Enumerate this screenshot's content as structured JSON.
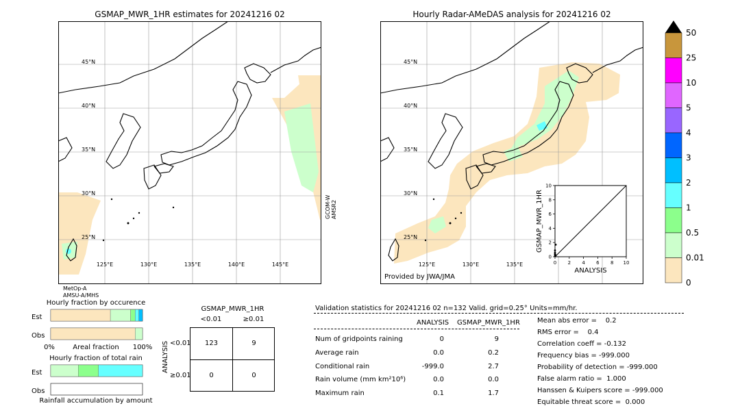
{
  "left_map": {
    "title": "GSMAP_MWR_1HR estimates for 20241216 02",
    "lat_labels": [
      "45°N",
      "40°N",
      "35°N",
      "30°N",
      "25°N"
    ],
    "lon_labels": [
      "125°E",
      "130°E",
      "135°E",
      "140°E",
      "145°E"
    ],
    "swath_label_right": "GCOM-W\nAMSR2",
    "swath_label_bottom": "MetOp-A\nAMSU-A/MHS"
  },
  "right_map": {
    "title": "Hourly Radar-AMeDAS analysis for 20241216 02",
    "lat_labels": [
      "45°N",
      "40°N",
      "35°N",
      "30°N",
      "25°N"
    ],
    "lon_labels": [
      "125°E",
      "130°E",
      "135°E"
    ],
    "credit": "Provided by JWA/JMA"
  },
  "colorbar": {
    "labels": [
      "50",
      "25",
      "10",
      "5",
      "4",
      "3",
      "2",
      "1",
      "0.5",
      "0.01",
      "0"
    ],
    "colors": [
      "#c8963c",
      "#ff00ff",
      "#e066ff",
      "#9966ff",
      "#0066ff",
      "#00bfff",
      "#66ffff",
      "#8cff8c",
      "#ccffcc",
      "#fce6be"
    ]
  },
  "chart_data": [
    {
      "type": "scatter",
      "title": "",
      "xlabel": "ANALYSIS",
      "ylabel": "GSMAP_MWR_1HR",
      "xlim": [
        0,
        10
      ],
      "ylim": [
        0,
        10
      ],
      "x_ticks": [
        "0",
        "2",
        "4",
        "6",
        "8",
        "10"
      ],
      "y_ticks": [
        "0",
        "2",
        "4",
        "6",
        "8",
        "10"
      ],
      "points": [
        [
          0.0,
          0.1
        ],
        [
          0.0,
          0.3
        ],
        [
          0.0,
          0.6
        ],
        [
          0.0,
          0.9
        ],
        [
          0.1,
          0.2
        ],
        [
          0.1,
          1.7
        ],
        [
          0.0,
          0.4
        ],
        [
          0.05,
          0.15
        ]
      ],
      "reference_line": [
        [
          0,
          0
        ],
        [
          10,
          10
        ]
      ]
    },
    {
      "type": "bar",
      "title": "Hourly fraction by occurence",
      "orientation": "horizontal",
      "categories": [
        "Est",
        "Obs"
      ],
      "x_ticks": [
        "0%",
        "Areal fraction",
        "100%"
      ],
      "segments": {
        "Est": [
          0.65,
          0.22,
          0.05,
          0.04,
          0.04
        ],
        "Obs": [
          0.92,
          0.08
        ]
      }
    },
    {
      "type": "bar",
      "title": "Hourly fraction of total rain",
      "orientation": "horizontal",
      "categories": [
        "Est",
        "Obs"
      ],
      "footer": "Rainfall accumulation by amount",
      "segments": {
        "Est": [
          0.3,
          0.22,
          0.48
        ],
        "Obs": []
      }
    },
    {
      "type": "table",
      "title": "GSMAP_MWR_1HR",
      "col_headers": [
        "<0.01",
        "≥0.01"
      ],
      "row_headers": [
        "<0.01",
        "≥0.01"
      ],
      "row_axis_label": "ANALYSIS",
      "cells": [
        [
          "123",
          "9"
        ],
        [
          "0",
          "0"
        ]
      ]
    }
  ],
  "validation": {
    "header": "Validation statistics for 20241216 02  n=132 Valid. grid=0.25° Units=mm/hr.",
    "col_analysis": "ANALYSIS",
    "col_gsmap": "GSMAP_MWR_1HR",
    "rows": [
      {
        "label": "Num of gridpoints raining",
        "analysis": "0",
        "gsmap": "9"
      },
      {
        "label": "Average rain",
        "analysis": "0.0",
        "gsmap": "0.2"
      },
      {
        "label": "Conditional rain",
        "analysis": "-999.0",
        "gsmap": "2.7"
      },
      {
        "label": "Rain volume (mm km²10⁶)",
        "analysis": "0.0",
        "gsmap": "0.0"
      },
      {
        "label": "Maximum rain",
        "analysis": "0.1",
        "gsmap": "1.7"
      }
    ],
    "scores": [
      "Mean abs error =    0.2",
      "RMS error =    0.4",
      "Correlation coeff = -0.132",
      "Frequency bias = -999.000",
      "Probability of detection = -999.000",
      "False alarm ratio =  1.000",
      "Hanssen & Kuipers score = -999.000",
      "Equitable threat score =  0.000"
    ]
  }
}
